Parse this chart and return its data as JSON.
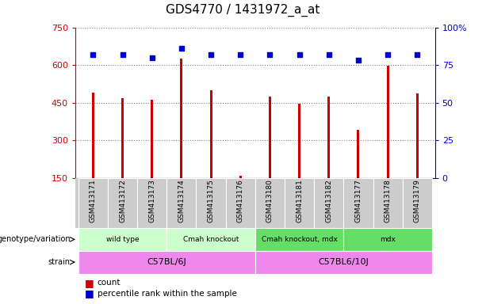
{
  "title": "GDS4770 / 1431972_a_at",
  "samples": [
    "GSM413171",
    "GSM413172",
    "GSM413173",
    "GSM413174",
    "GSM413175",
    "GSM413176",
    "GSM413180",
    "GSM413181",
    "GSM413182",
    "GSM413177",
    "GSM413178",
    "GSM413179"
  ],
  "counts": [
    490,
    468,
    460,
    625,
    500,
    158,
    475,
    445,
    475,
    340,
    597,
    487
  ],
  "percentiles": [
    82,
    82,
    80,
    86,
    82,
    82,
    82,
    82,
    82,
    78,
    82,
    82
  ],
  "ylim_left": [
    150,
    750
  ],
  "ylim_right": [
    0,
    100
  ],
  "yticks_left": [
    150,
    300,
    450,
    600,
    750
  ],
  "yticks_right": [
    0,
    25,
    50,
    75,
    100
  ],
  "bar_color": "#cc0000",
  "dot_color": "#0000cc",
  "grid_color": "#888888",
  "genotype_groups": [
    {
      "label": "wild type",
      "start": 0,
      "end": 3,
      "color": "#ccffcc"
    },
    {
      "label": "Cmah knockout",
      "start": 3,
      "end": 6,
      "color": "#ccffcc"
    },
    {
      "label": "Cmah knockout, mdx",
      "start": 6,
      "end": 9,
      "color": "#66dd66"
    },
    {
      "label": "mdx",
      "start": 9,
      "end": 12,
      "color": "#66dd66"
    }
  ],
  "strain_groups": [
    {
      "label": "C57BL/6J",
      "start": 0,
      "end": 6,
      "color": "#ee88ee"
    },
    {
      "label": "C57BL6/10J",
      "start": 6,
      "end": 12,
      "color": "#ee88ee"
    }
  ],
  "left_label_color": "#cc0000",
  "right_label_color": "#0000cc",
  "background_color": "#ffffff",
  "sample_bg_color": "#cccccc",
  "bar_width": 0.08
}
